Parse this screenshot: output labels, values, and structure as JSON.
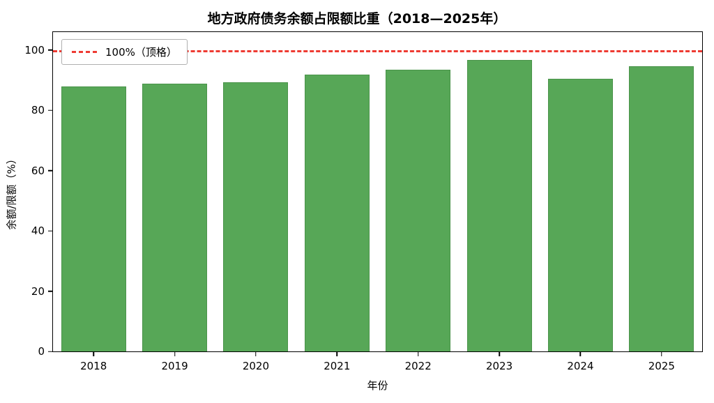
{
  "chart_data": {
    "type": "bar",
    "title": "地方政府债务余额占限额比重（2018—2025年）",
    "xlabel": "年份",
    "ylabel": "余额/限额（%）",
    "categories": [
      "2018",
      "2019",
      "2020",
      "2021",
      "2022",
      "2023",
      "2024",
      "2025"
    ],
    "values": [
      87.9,
      88.8,
      89.3,
      91.8,
      93.4,
      96.8,
      90.4,
      94.7
    ],
    "ylim": [
      0,
      106
    ],
    "yticks": [
      0,
      20,
      40,
      60,
      80,
      100
    ],
    "grid": false,
    "bar_color": "#57a757",
    "reference_line": {
      "value": 100,
      "color": "#ee3b33",
      "style": "dashed",
      "label": "100%（顶格）"
    },
    "legend": {
      "position": "upper-left",
      "entries": [
        "100%（顶格）"
      ]
    }
  }
}
